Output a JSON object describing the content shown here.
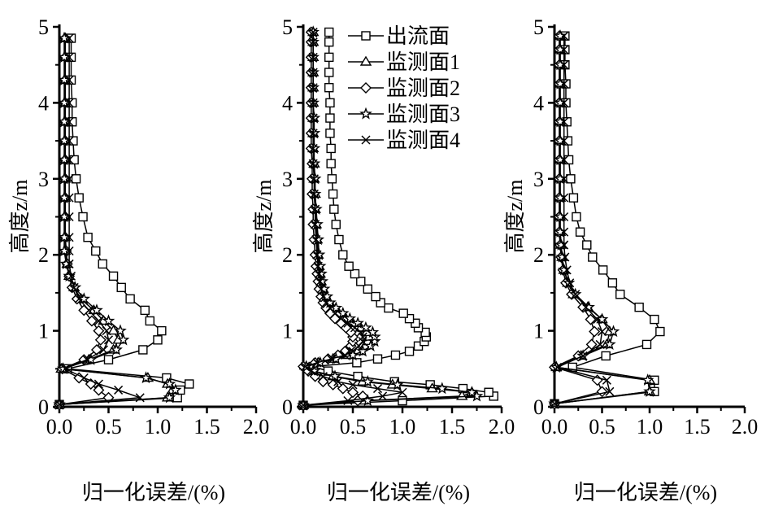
{
  "chart_data": {
    "type": "line",
    "series_names": [
      "出流面",
      "监测面1",
      "监测面2",
      "监测面3",
      "监测面4"
    ],
    "markers": [
      "square",
      "triangle",
      "diamond",
      "star",
      "x"
    ],
    "legend_placement": "top-right of middle panel",
    "panels": [
      {
        "xlabel": "归一化误差/(%)",
        "ylabel": "高度z/m",
        "xlim": [
          0,
          2.0
        ],
        "ylim": [
          0,
          5
        ],
        "xticks": [
          "0.0",
          "0.5",
          "1.0",
          "1.5",
          "2.0"
        ],
        "yticks": [
          "0",
          "1",
          "2",
          "3",
          "4",
          "5"
        ],
        "z": [
          0.03,
          0.12,
          0.22,
          0.3,
          0.38,
          0.5,
          0.62,
          0.75,
          0.88,
          1.0,
          1.13,
          1.27,
          1.42,
          1.57,
          1.72,
          1.88,
          2.05,
          2.23,
          2.5,
          2.75,
          3.0,
          3.25,
          3.5,
          3.75,
          4.0,
          4.3,
          4.6,
          4.85
        ],
        "series": [
          {
            "name": "出流面",
            "values": [
              0,
              1.2,
              1.23,
              1.32,
              1.09,
              0.08,
              0.5,
              0.85,
              1.0,
              1.04,
              0.92,
              0.87,
              0.72,
              0.63,
              0.55,
              0.44,
              0.37,
              0.29,
              0.24,
              0.2,
              0.17,
              0.15,
              0.14,
              0.13,
              0.13,
              0.12,
              0.12,
              0.12
            ]
          },
          {
            "name": "监测面1",
            "values": [
              0,
              1.1,
              1.15,
              1.1,
              0.9,
              0.02,
              0.3,
              0.55,
              0.6,
              0.55,
              0.45,
              0.35,
              0.22,
              0.15,
              0.1,
              0.08,
              0.06,
              0.06,
              0.06,
              0.06,
              0.06,
              0.06,
              0.06,
              0.06,
              0.06,
              0.06,
              0.06,
              0.06
            ]
          },
          {
            "name": "监测面2",
            "values": [
              0,
              0.5,
              0.4,
              0.32,
              0.2,
              0.03,
              0.25,
              0.38,
              0.42,
              0.4,
              0.33,
              0.25,
              0.18,
              0.13,
              0.1,
              0.08,
              0.07,
              0.06,
              0.06,
              0.06,
              0.06,
              0.06,
              0.06,
              0.06,
              0.06,
              0.06,
              0.06,
              0.06
            ]
          },
          {
            "name": "监测面3",
            "values": [
              0,
              1.12,
              1.18,
              1.12,
              0.88,
              0.04,
              0.32,
              0.58,
              0.65,
              0.62,
              0.5,
              0.38,
              0.25,
              0.16,
              0.1,
              0.07,
              0.05,
              0.05,
              0.05,
              0.05,
              0.05,
              0.05,
              0.05,
              0.05,
              0.05,
              0.05,
              0.05,
              0.05
            ]
          },
          {
            "name": "监测面4",
            "values": [
              0,
              0.82,
              0.6,
              0.4,
              0.25,
              0.06,
              0.28,
              0.45,
              0.5,
              0.48,
              0.4,
              0.3,
              0.2,
              0.15,
              0.12,
              0.1,
              0.1,
              0.1,
              0.1,
              0.1,
              0.1,
              0.1,
              0.1,
              0.1,
              0.1,
              0.1,
              0.1,
              0.1
            ]
          }
        ]
      },
      {
        "xlabel": "归一化误差/(%)",
        "ylabel": "高度z/m",
        "xlim": [
          0,
          2.0
        ],
        "ylim": [
          0,
          5
        ],
        "xticks": [
          "0.0",
          "0.5",
          "1.0",
          "1.5",
          "2.0"
        ],
        "yticks": [
          "0",
          "1",
          "2",
          "3",
          "4",
          "5"
        ],
        "z": [
          0.02,
          0.08,
          0.14,
          0.19,
          0.24,
          0.29,
          0.33,
          0.4,
          0.47,
          0.53,
          0.58,
          0.63,
          0.68,
          0.73,
          0.8,
          0.86,
          0.92,
          0.98,
          1.04,
          1.1,
          1.16,
          1.23,
          1.3,
          1.37,
          1.45,
          1.55,
          1.65,
          1.75,
          1.85,
          2.0,
          2.2,
          2.4,
          2.6,
          2.8,
          3.0,
          3.2,
          3.4,
          3.6,
          3.8,
          4.0,
          4.2,
          4.4,
          4.6,
          4.8,
          4.93
        ],
        "series": [
          {
            "name": "出流面",
            "values": [
              0,
              1.0,
              1.92,
              1.87,
              1.61,
              1.28,
              0.92,
              0.55,
              0.25,
              0.1,
              0.54,
              0.75,
              0.93,
              1.07,
              1.16,
              1.22,
              1.24,
              1.23,
              1.16,
              1.13,
              1.07,
              1.01,
              0.86,
              0.78,
              0.73,
              0.65,
              0.58,
              0.52,
              0.46,
              0.4,
              0.36,
              0.33,
              0.31,
              0.3,
              0.29,
              0.28,
              0.28,
              0.27,
              0.27,
              0.27,
              0.26,
              0.26,
              0.26,
              0.26,
              0.26
            ]
          },
          {
            "name": "监测面1",
            "values": [
              0,
              0.6,
              1.6,
              1.7,
              1.3,
              0.9,
              0.6,
              0.3,
              0.1,
              0.03,
              0.15,
              0.3,
              0.45,
              0.55,
              0.62,
              0.65,
              0.66,
              0.64,
              0.58,
              0.5,
              0.43,
              0.36,
              0.3,
              0.25,
              0.22,
              0.2,
              0.18,
              0.17,
              0.16,
              0.15,
              0.14,
              0.13,
              0.12,
              0.12,
              0.11,
              0.11,
              0.1,
              0.1,
              0.1,
              0.1,
              0.1,
              0.1,
              0.1,
              0.1,
              0.1
            ]
          },
          {
            "name": "监测面2",
            "values": [
              0,
              0.55,
              0.6,
              0.5,
              0.4,
              0.3,
              0.2,
              0.12,
              0.05,
              0.0,
              0.12,
              0.25,
              0.35,
              0.42,
              0.48,
              0.5,
              0.5,
              0.48,
              0.43,
              0.38,
              0.32,
              0.27,
              0.23,
              0.2,
              0.18,
              0.16,
              0.15,
              0.14,
              0.13,
              0.12,
              0.11,
              0.1,
              0.1,
              0.09,
              0.09,
              0.09,
              0.08,
              0.08,
              0.08,
              0.08,
              0.08,
              0.08,
              0.08,
              0.08,
              0.08
            ]
          },
          {
            "name": "监测面3",
            "values": [
              0,
              0.65,
              1.75,
              1.7,
              1.4,
              0.95,
              0.65,
              0.32,
              0.11,
              0.03,
              0.17,
              0.33,
              0.5,
              0.6,
              0.68,
              0.72,
              0.72,
              0.7,
              0.63,
              0.55,
              0.47,
              0.4,
              0.33,
              0.27,
              0.24,
              0.21,
              0.19,
              0.18,
              0.17,
              0.16,
              0.15,
              0.14,
              0.13,
              0.12,
              0.12,
              0.11,
              0.11,
              0.11,
              0.11,
              0.1,
              0.1,
              0.1,
              0.1,
              0.1,
              0.1
            ]
          },
          {
            "name": "监测面4",
            "values": [
              0,
              0.45,
              0.8,
              1.0,
              0.75,
              0.5,
              0.35,
              0.2,
              0.08,
              0.02,
              0.14,
              0.28,
              0.42,
              0.5,
              0.56,
              0.6,
              0.6,
              0.58,
              0.52,
              0.45,
              0.38,
              0.32,
              0.27,
              0.23,
              0.2,
              0.18,
              0.17,
              0.16,
              0.15,
              0.14,
              0.13,
              0.12,
              0.12,
              0.11,
              0.11,
              0.1,
              0.1,
              0.1,
              0.1,
              0.1,
              0.1,
              0.1,
              0.1,
              0.1,
              0.1
            ]
          }
        ]
      },
      {
        "xlabel": "归一化误差/(%)",
        "ylabel": "高度z/m",
        "xlim": [
          0,
          2.0
        ],
        "ylim": [
          0,
          5
        ],
        "xticks": [
          "0.0",
          "0.5",
          "1.0",
          "1.5",
          "2.0"
        ],
        "yticks": [
          "0",
          "1",
          "2",
          "3",
          "4",
          "5"
        ],
        "z": [
          0.04,
          0.2,
          0.35,
          0.52,
          0.67,
          0.82,
          0.99,
          1.15,
          1.31,
          1.48,
          1.63,
          1.8,
          1.97,
          2.13,
          2.3,
          2.5,
          2.75,
          3.0,
          3.25,
          3.5,
          3.75,
          4.0,
          4.25,
          4.5,
          4.7,
          4.88
        ],
        "series": [
          {
            "name": "出流面",
            "values": [
              0,
              1.05,
              1.05,
              0.19,
              0.54,
              0.97,
              1.11,
              1.05,
              0.89,
              0.69,
              0.61,
              0.51,
              0.4,
              0.34,
              0.27,
              0.23,
              0.2,
              0.17,
              0.15,
              0.14,
              0.13,
              0.12,
              0.12,
              0.11,
              0.11,
              0.11
            ]
          },
          {
            "name": "监测面1",
            "values": [
              0,
              1.0,
              1.0,
              0.02,
              0.28,
              0.55,
              0.58,
              0.5,
              0.35,
              0.2,
              0.14,
              0.1,
              0.08,
              0.07,
              0.06,
              0.06,
              0.06,
              0.06,
              0.06,
              0.06,
              0.06,
              0.06,
              0.06,
              0.06,
              0.06,
              0.06
            ]
          },
          {
            "name": "监测面2",
            "values": [
              0,
              0.5,
              0.45,
              0.0,
              0.25,
              0.39,
              0.42,
              0.38,
              0.3,
              0.18,
              0.12,
              0.09,
              0.07,
              0.06,
              0.05,
              0.05,
              0.05,
              0.05,
              0.05,
              0.05,
              0.05,
              0.05,
              0.05,
              0.05,
              0.05,
              0.05
            ]
          },
          {
            "name": "监测面3",
            "values": [
              0,
              1.0,
              0.98,
              0.02,
              0.3,
              0.58,
              0.62,
              0.5,
              0.36,
              0.22,
              0.15,
              0.1,
              0.08,
              0.07,
              0.06,
              0.06,
              0.06,
              0.06,
              0.06,
              0.06,
              0.06,
              0.06,
              0.06,
              0.06,
              0.06,
              0.06
            ]
          },
          {
            "name": "监测面4",
            "values": [
              0,
              0.58,
              0.55,
              0.03,
              0.3,
              0.48,
              0.5,
              0.45,
              0.33,
              0.22,
              0.16,
              0.13,
              0.11,
              0.1,
              0.1,
              0.1,
              0.1,
              0.1,
              0.1,
              0.1,
              0.1,
              0.1,
              0.1,
              0.1,
              0.1,
              0.1
            ]
          }
        ]
      }
    ]
  }
}
